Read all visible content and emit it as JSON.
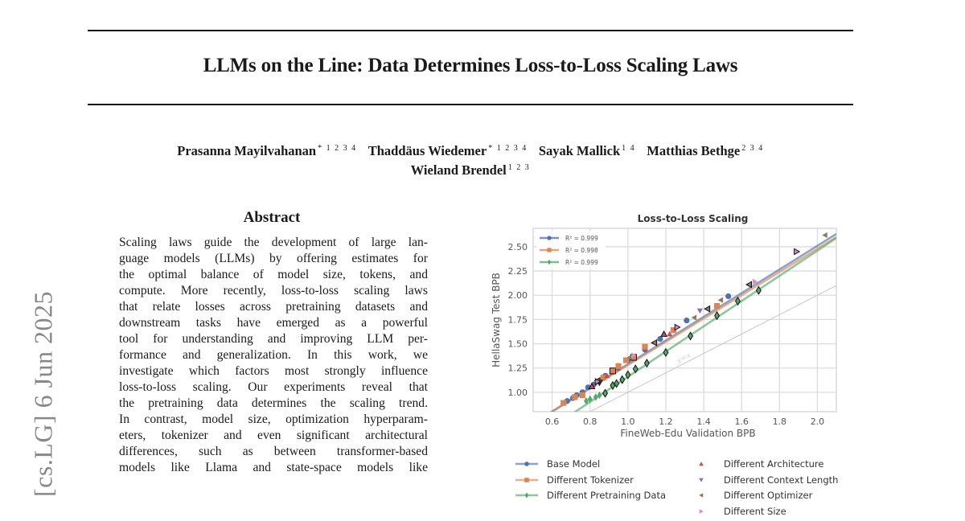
{
  "paper": {
    "title": "LLMs on the Line: Data Determines Loss-to-Loss Scaling Laws",
    "authors": [
      {
        "name": "Prasanna Mayilvahanan",
        "affil": "* 1 2 3 4"
      },
      {
        "name": "Thaddäus Wiedemer",
        "affil": "* 1 2 3 4"
      },
      {
        "name": "Sayak Mallick",
        "affil": "1 4"
      },
      {
        "name": "Matthias Bethge",
        "affil": "2 3 4"
      },
      {
        "name": "Wieland Brendel",
        "affil": "1 2 3"
      }
    ],
    "arxiv_stamp": "[cs.LG]  6 Jun 2025",
    "abstract_heading": "Abstract",
    "abstract_lines": [
      "Scaling laws guide the development of large lan-",
      "guage models (LLMs) by offering estimates for",
      "the optimal balance of model size, tokens, and",
      "compute. More recently, loss-to-loss scaling laws",
      "that relate losses across pretraining datasets and",
      "downstream tasks have emerged as a powerful",
      "tool for understanding and improving LLM per-",
      "formance and generalization.  In this work, we",
      "investigate which factors most strongly influence",
      "loss-to-loss scaling. Our experiments reveal that",
      "the pretraining data determines the scaling trend.",
      "In contrast, model size, optimization hyperparam-",
      "eters, tokenizer and even significant architectural",
      "differences, such as between transformer-based",
      "models like Llama and state-space models like"
    ]
  },
  "chart_data": {
    "type": "scatter",
    "title": "Loss-to-Loss Scaling",
    "xlabel": "FineWeb-Edu Validation BPB",
    "ylabel": "HellaSwag Test BPB",
    "xlim": [
      0.5,
      2.1
    ],
    "ylim": [
      0.8,
      2.69
    ],
    "xticks": [
      "0.6",
      "0.8",
      "1.0",
      "1.2",
      "1.4",
      "1.6",
      "1.8",
      "2.0"
    ],
    "yticks": [
      "1.00",
      "1.25",
      "1.50",
      "1.75",
      "2.00",
      "2.25",
      "2.50"
    ],
    "grid": true,
    "reference_line": {
      "label": "y=x",
      "color": "#c8c8c8"
    },
    "fit_legend_placement": "top-left",
    "fits": [
      {
        "name": "Base Model",
        "r2_label": "R² = 0.999",
        "color": "#4c72b0",
        "slope": 1.22,
        "intercept": 0.07,
        "marker": "circle"
      },
      {
        "name": "Different Tokenizer",
        "r2_label": "R² = 0.998",
        "color": "#dd8452",
        "slope": 1.2,
        "intercept": 0.08,
        "marker": "square"
      },
      {
        "name": "Different Pretraining Data",
        "r2_label": "R² = 0.999",
        "color": "#55a868",
        "slope": 1.3,
        "intercept": -0.14,
        "marker": "diamond"
      }
    ],
    "series": [
      {
        "name": "Base Model",
        "color": "#4c72b0",
        "marker": "circle",
        "x": [
          0.68,
          0.71,
          0.73,
          0.76,
          0.79,
          0.82,
          0.88,
          0.95,
          1.0,
          1.09,
          1.17,
          1.31,
          1.53
        ],
        "y": [
          0.91,
          0.94,
          0.97,
          1.0,
          1.05,
          1.08,
          1.17,
          1.25,
          1.33,
          1.44,
          1.55,
          1.74,
          1.99
        ]
      },
      {
        "name": "Different Tokenizer",
        "color": "#dd8452",
        "marker": "square",
        "x": [
          0.66,
          0.72,
          0.76,
          0.87,
          0.92,
          0.95,
          0.99,
          1.03,
          1.09,
          1.24,
          1.47
        ],
        "y": [
          0.89,
          0.95,
          0.97,
          1.15,
          1.22,
          1.27,
          1.33,
          1.36,
          1.47,
          1.64,
          1.89
        ]
      },
      {
        "name": "Different Pretraining Data",
        "color": "#55a868",
        "marker": "diamond",
        "x": [
          0.78,
          0.8,
          0.83,
          0.85,
          0.88,
          0.92,
          0.94,
          0.97,
          1.0,
          1.04,
          1.1,
          1.2,
          1.33,
          1.47,
          1.58,
          1.69
        ],
        "y": [
          0.91,
          0.93,
          0.95,
          0.97,
          0.99,
          1.07,
          1.09,
          1.13,
          1.18,
          1.24,
          1.3,
          1.41,
          1.58,
          1.79,
          1.94,
          2.05
        ]
      },
      {
        "name": "Different Architecture",
        "color": "#c44e52",
        "marker": "triangle-up",
        "x": [
          0.81,
          0.89,
          1.19,
          1.22
        ],
        "y": [
          1.06,
          1.17,
          1.6,
          1.6
        ]
      },
      {
        "name": "Different Context Length",
        "color": "#8172b3",
        "marker": "triangle-down",
        "x": [
          0.85,
          1.38
        ],
        "y": [
          1.1,
          1.84
        ]
      },
      {
        "name": "Different Optimizer",
        "color": "#937860",
        "marker": "triangle-left",
        "x": [
          0.84,
          1.01,
          1.14,
          1.35,
          1.42,
          1.49,
          1.64,
          2.04
        ],
        "y": [
          1.12,
          1.36,
          1.51,
          1.77,
          1.86,
          1.95,
          2.11,
          2.62
        ]
      },
      {
        "name": "Different Size",
        "color": "#da8bc3",
        "marker": "triangle-right",
        "x": [
          0.84,
          1.03,
          1.26,
          1.67,
          1.89
        ],
        "y": [
          1.11,
          1.38,
          1.67,
          2.14,
          2.45
        ]
      }
    ],
    "bottom_legend": [
      {
        "label": "Base Model",
        "color": "#4c72b0",
        "marker": "circle",
        "line": true
      },
      {
        "label": "Different Tokenizer",
        "color": "#dd8452",
        "marker": "square",
        "line": true
      },
      {
        "label": "Different Pretraining Data",
        "color": "#55a868",
        "marker": "diamond",
        "line": true
      },
      {
        "label": "Different Architecture",
        "color": "#c44e52",
        "marker": "triangle-up",
        "line": false
      },
      {
        "label": "Different Context Length",
        "color": "#8172b3",
        "marker": "triangle-down",
        "line": false
      },
      {
        "label": "Different Optimizer",
        "color": "#937860",
        "marker": "triangle-left",
        "line": false
      },
      {
        "label": "Different Size",
        "color": "#da8bc3",
        "marker": "triangle-right",
        "line": false
      }
    ]
  }
}
